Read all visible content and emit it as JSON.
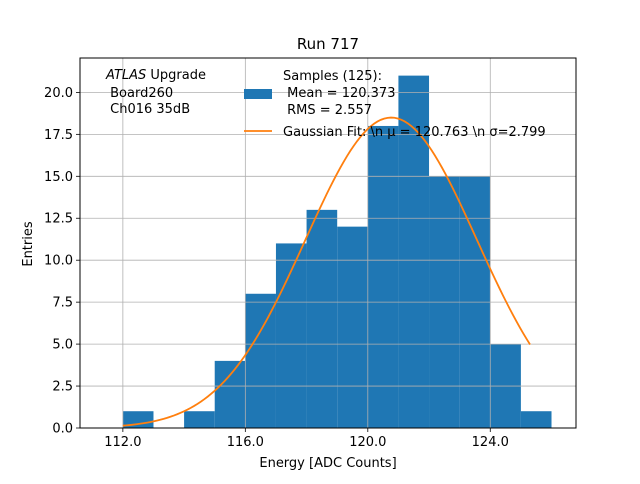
{
  "chart_data": {
    "type": "bar",
    "title": "Run 717",
    "xlabel": "Energy [ADC Counts]",
    "ylabel": "Entries",
    "xlim": [
      110.6,
      126.8
    ],
    "ylim": [
      0,
      22.05
    ],
    "xticks": [
      112.0,
      116.0,
      120.0,
      124.0
    ],
    "xtick_labels": [
      "112.0",
      "116.0",
      "120.0",
      "124.0"
    ],
    "yticks": [
      0,
      2.5,
      5,
      7.5,
      10,
      12.5,
      15,
      17.5,
      20
    ],
    "ytick_labels": [
      "0.0",
      "2.5",
      "5.0",
      "7.5",
      "10.0",
      "12.5",
      "15.0",
      "17.5",
      "20.0"
    ],
    "grid": true,
    "bar_color": "#1f77b4",
    "fit_color": "#ff7f0e",
    "bins": [
      {
        "x0": 112,
        "x1": 113,
        "count": 1
      },
      {
        "x0": 113,
        "x1": 114,
        "count": 0
      },
      {
        "x0": 114,
        "x1": 115,
        "count": 1
      },
      {
        "x0": 115,
        "x1": 116,
        "count": 4
      },
      {
        "x0": 116,
        "x1": 117,
        "count": 8
      },
      {
        "x0": 117,
        "x1": 118,
        "count": 11
      },
      {
        "x0": 118,
        "x1": 119,
        "count": 13
      },
      {
        "x0": 119,
        "x1": 120,
        "count": 12
      },
      {
        "x0": 120,
        "x1": 121,
        "count": 18
      },
      {
        "x0": 121,
        "x1": 122,
        "count": 21
      },
      {
        "x0": 122,
        "x1": 123,
        "count": 15
      },
      {
        "x0": 123,
        "x1": 124,
        "count": 15
      },
      {
        "x0": 124,
        "x1": 125,
        "count": 5
      },
      {
        "x0": 125,
        "x1": 126,
        "count": 1
      }
    ],
    "fit": {
      "mu": 120.763,
      "sigma": 2.799,
      "amplitude": 18.5,
      "x_range": [
        112.0,
        125.3
      ]
    },
    "legend": {
      "placement": "top-center",
      "entries": [
        {
          "kind": "bar",
          "lines": [
            "Samples (125):",
            " Mean = 120.373",
            " RMS = 2.557"
          ]
        },
        {
          "kind": "line",
          "lines": [
            "Gaussian Fit: \\n μ = 120.763 \\n σ=2.799"
          ]
        }
      ]
    },
    "annotation": {
      "placement": "top-left",
      "lines": [
        {
          "italic": "ATLAS",
          "rest": " Upgrade"
        },
        {
          "text": " Board260"
        },
        {
          "text": " Ch016 35dB"
        }
      ]
    }
  }
}
